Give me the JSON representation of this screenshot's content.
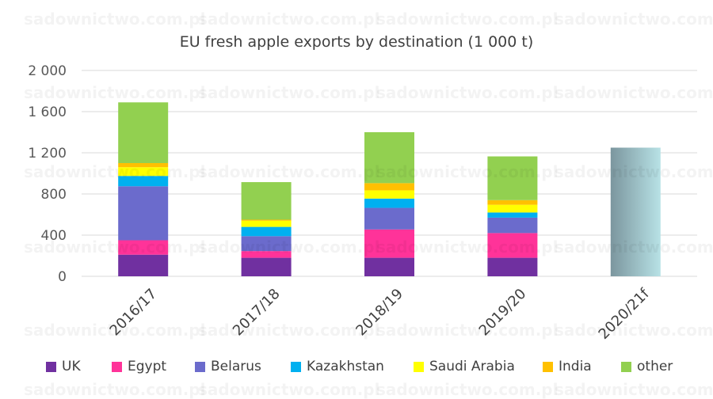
{
  "chart_data": {
    "type": "bar",
    "stacked": true,
    "title": "EU fresh apple exports by destination (1 000 t)",
    "categories": [
      "2016/17",
      "2017/18",
      "2018/19",
      "2019/20",
      "2020/21f"
    ],
    "y_ticks": [
      "2 000",
      "1 600",
      "1 200",
      "800",
      "400",
      "0"
    ],
    "ylim": [
      0,
      2000
    ],
    "grid": true,
    "legend_position": "bottom",
    "series": [
      {
        "name": "UK",
        "color": "#7030A0",
        "values": [
          210,
          180,
          180,
          180,
          0
        ]
      },
      {
        "name": "Egypt",
        "color": "#FF3399",
        "values": [
          140,
          65,
          275,
          240,
          0
        ]
      },
      {
        "name": "Belarus",
        "color": "#6B6BCC",
        "values": [
          525,
          145,
          210,
          150,
          0
        ]
      },
      {
        "name": "Kazakhstan",
        "color": "#00B0F0",
        "values": [
          100,
          90,
          90,
          50,
          0
        ]
      },
      {
        "name": "Saudi Arabia",
        "color": "#FFFF00",
        "values": [
          85,
          60,
          80,
          75,
          0
        ]
      },
      {
        "name": "India",
        "color": "#FFC000",
        "values": [
          40,
          10,
          70,
          45,
          0
        ]
      },
      {
        "name": "other",
        "color": "#92D050",
        "values": [
          590,
          365,
          495,
          425,
          0
        ]
      }
    ],
    "forecast": {
      "category": "2020/21f",
      "value": 1250,
      "color_from": "#7B969E",
      "color_to": "#B8E2E6"
    }
  },
  "watermark": {
    "text": "sadownictwo.com.pl"
  }
}
